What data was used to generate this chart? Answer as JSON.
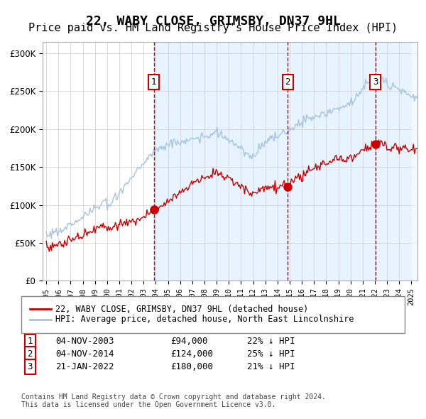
{
  "title": "22, WABY CLOSE, GRIMSBY, DN37 9HL",
  "subtitle": "Price paid vs. HM Land Registry's House Price Index (HPI)",
  "title_fontsize": 13,
  "subtitle_fontsize": 11,
  "ylabel_ticks": [
    "£0",
    "£50K",
    "£100K",
    "£150K",
    "£200K",
    "£250K",
    "£300K"
  ],
  "ytick_values": [
    0,
    50000,
    100000,
    150000,
    200000,
    250000,
    300000
  ],
  "ylim": [
    0,
    315000
  ],
  "sale_dates_num": [
    2003.843,
    2014.843,
    2022.055
  ],
  "sale_prices": [
    94000,
    124000,
    180000
  ],
  "sale_labels": [
    "1",
    "2",
    "3"
  ],
  "x_start_year": 1995,
  "x_end_year": 2025.5,
  "hpi_color": "#a8c4e0",
  "price_color": "#cc0000",
  "bg_shaded_color": "#ddeeff",
  "vline_color": "#cc0000",
  "grid_color": "#cccccc",
  "legend_entries": [
    "22, WABY CLOSE, GRIMSBY, DN37 9HL (detached house)",
    "HPI: Average price, detached house, North East Lincolnshire"
  ],
  "table_data": [
    [
      "1",
      "04-NOV-2003",
      "£94,000",
      "22% ↓ HPI"
    ],
    [
      "2",
      "04-NOV-2014",
      "£124,000",
      "25% ↓ HPI"
    ],
    [
      "3",
      "21-JAN-2022",
      "£180,000",
      "21% ↓ HPI"
    ]
  ],
  "footnote": "Contains HM Land Registry data © Crown copyright and database right 2024.\nThis data is licensed under the Open Government Licence v3.0."
}
